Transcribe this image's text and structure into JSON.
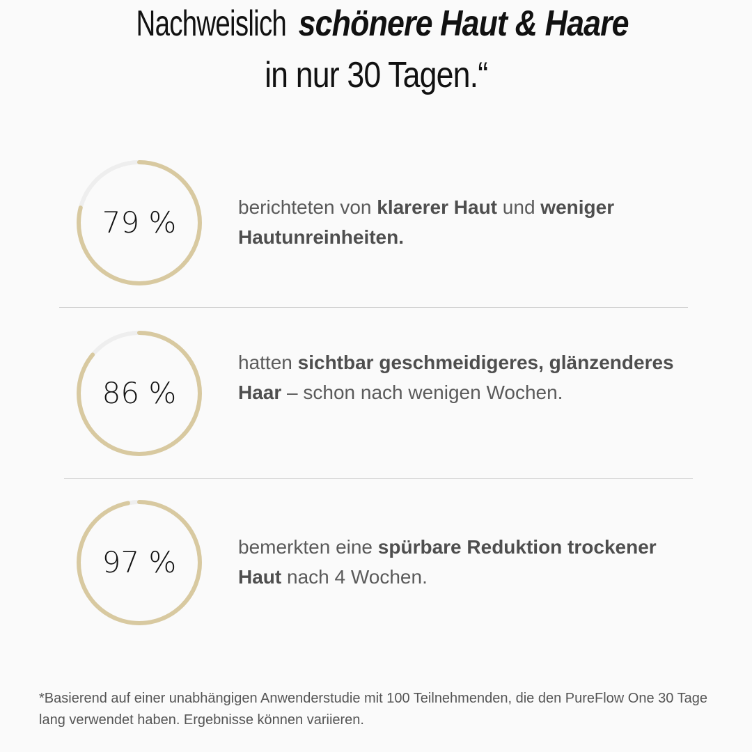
{
  "headline": {
    "line1_regular": "Nachweislich ",
    "line1_emphasis": "schönere Haut & Haare",
    "line2": "in nur 30 Tagen.“"
  },
  "colors": {
    "ring": "#d8c9a0",
    "track": "#eeeeee"
  },
  "stats": [
    {
      "percent": 79,
      "label": "79 %",
      "parts": [
        {
          "t": "berichteten von ",
          "b": false
        },
        {
          "t": "klarerer Haut",
          "b": true
        },
        {
          "t": " und ",
          "b": false
        },
        {
          "t": "weniger Hautunreinheiten.",
          "b": true
        }
      ]
    },
    {
      "percent": 86,
      "label": "86 %",
      "parts": [
        {
          "t": "hatten ",
          "b": false
        },
        {
          "t": "sichtbar geschmeidigeres, glänzenderes Haar",
          "b": true
        },
        {
          "t": " – schon nach wenigen Wochen.",
          "b": false
        }
      ]
    },
    {
      "percent": 97,
      "label": "97 %",
      "parts": [
        {
          "t": "bemerkten eine ",
          "b": false
        },
        {
          "t": "spürbare Reduktion trockener Haut",
          "b": true
        },
        {
          "t": " nach 4 Wochen.",
          "b": false
        }
      ]
    }
  ],
  "footnote": "*Basierend auf einer unabhängigen Anwenderstudie mit 100 Teilnehmenden, die den PureFlow One 30 Tage lang verwendet haben. Ergebnisse können variieren."
}
